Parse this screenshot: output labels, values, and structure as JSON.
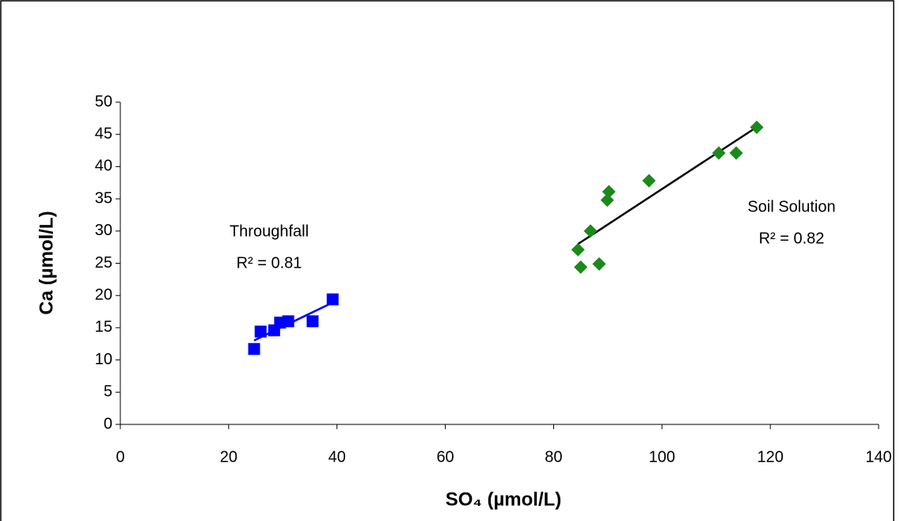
{
  "chart_data": {
    "type": "scatter",
    "x_label": "SO₄ (µmol/L)",
    "y_label": "Ca (µmol/L)",
    "xlim": [
      0,
      140
    ],
    "xticks": [
      0,
      20,
      40,
      60,
      80,
      100,
      120,
      140
    ],
    "ylim": [
      0,
      50
    ],
    "yticks": [
      0,
      5,
      10,
      15,
      20,
      25,
      30,
      35,
      40,
      45,
      50
    ],
    "grid": false,
    "trendline": true,
    "series": [
      {
        "name": "Throughfall",
        "color": "#0000ff",
        "marker": "square",
        "trend_color": "#0000ff",
        "x": [
          24.7,
          25.9,
          28.4,
          29.5,
          31.0,
          35.5,
          39.2
        ],
        "values": [
          11.7,
          14.4,
          14.6,
          15.8,
          16.0,
          16.0,
          19.4
        ]
      },
      {
        "name": "Soil Solution",
        "color": "#1a8a1a",
        "marker": "diamond",
        "trend_color": "#000000",
        "x": [
          84.5,
          85.0,
          86.8,
          88.4,
          89.9,
          90.2,
          97.6,
          110.5,
          113.7,
          117.5
        ],
        "values": [
          27.1,
          24.4,
          30.0,
          24.9,
          34.8,
          36.1,
          37.8,
          42.1,
          42.1,
          46.1
        ]
      }
    ],
    "annotations": [
      "R² = 0.81",
      "R² = 0.82"
    ]
  }
}
